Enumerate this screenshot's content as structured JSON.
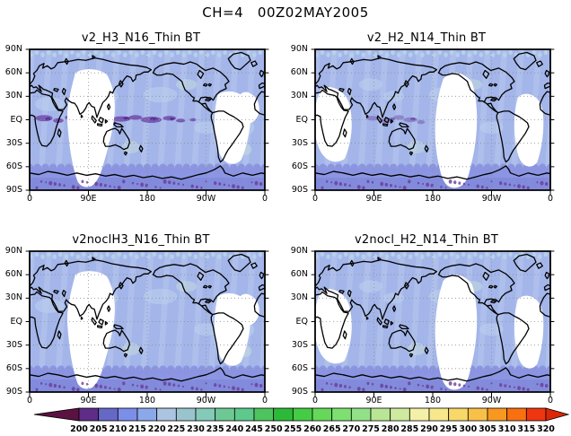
{
  "main": {
    "title": "CH=4   00Z02MAY2005"
  },
  "panels": [
    {
      "title": "v2_H3_N16_Thin BT",
      "variant": "A",
      "clouds": true
    },
    {
      "title": "v2_H2_N14_Thin BT",
      "variant": "B",
      "clouds": true
    },
    {
      "title": "v2noclH3_N16_Thin BT",
      "variant": "A",
      "clouds": false
    },
    {
      "title": "v2nocl_H2_N14_Thin BT",
      "variant": "B",
      "clouds": false
    }
  ],
  "map_axes": {
    "lat_labels": [
      "90N",
      "60N",
      "30N",
      "EQ",
      "30S",
      "60S",
      "90S"
    ],
    "lon_labels": [
      "0",
      "90E",
      "180",
      "90W",
      "0"
    ]
  },
  "colorbar": {
    "labels": [
      "200",
      "205",
      "210",
      "215",
      "220",
      "225",
      "230",
      "235",
      "240",
      "245",
      "250",
      "255",
      "260",
      "265",
      "270",
      "275",
      "280",
      "285",
      "290",
      "295",
      "300",
      "305",
      "310",
      "315",
      "320"
    ],
    "segment_colors": [
      "#5f2c87",
      "#6668c6",
      "#7b8ee9",
      "#8ba9ea",
      "#abc4e1",
      "#9ac4cd",
      "#85c9b9",
      "#6ec895",
      "#5dc98b",
      "#4dc45d",
      "#2db938",
      "#45cc45",
      "#65d859",
      "#7de071",
      "#92e189",
      "#b9e695",
      "#cdea9e",
      "#f4f0a8",
      "#f8e88c",
      "#f8d868",
      "#f8c048",
      "#f89820",
      "#f87010",
      "#ee3611"
    ],
    "left_arrow_color": "#5c1240",
    "right_arrow_color": "#dd2605"
  },
  "map_colors": {
    "data_base": "#a3b5e9",
    "data_pale": "#bdd2ee",
    "data_cyan": "#b7d3ea",
    "green_tint": "#cfe8d8",
    "stripe": "#c8d6f4",
    "swath_gap": "#ffffff",
    "cloud_purple": "#6d44a8",
    "cloud_dark": "#5a2f96",
    "antarctic_band": "#8a93e2",
    "antarctic_scallop": "#7d84d8",
    "polar_dots": "#6a3a9a",
    "coastline": "#000000",
    "grid": "#909090"
  },
  "chart_data": {
    "type": "heatmap",
    "title": "CH=4  00Z02MAY2005",
    "panels": [
      "v2_H3_N16_Thin BT",
      "v2_H2_N14_Thin BT",
      "v2noclH3_N16_Thin BT",
      "v2nocl_H2_N14_Thin BT"
    ],
    "panel_grid": "2x2 world maps, cylindrical lat-lon projection, lon 0-360E, lat 90S-90N",
    "x_ticks": [
      "0",
      "90E",
      "180",
      "90W",
      "0"
    ],
    "y_ticks": [
      "90N",
      "60N",
      "30N",
      "EQ",
      "30S",
      "60S",
      "90S"
    ],
    "colorbar_ticks": [
      200,
      205,
      210,
      215,
      220,
      225,
      230,
      235,
      240,
      245,
      250,
      255,
      260,
      265,
      270,
      275,
      280,
      285,
      290,
      295,
      300,
      305,
      310,
      315,
      320
    ],
    "colorbar_range": [
      200,
      320
    ],
    "colorbar_step": 5,
    "legend_position": "bottom",
    "grid": "dotted",
    "value_summary": "Satellite swath brightness temperatures; shown swaths mostly 210-235 (blue shades), ~200-215 (purple) along tropical cloud bands in top panels and near Antarctica; white regions are data gaps between orbits. Left column (N16) and right column (N14) have complementary swath gap patterns; bottom 'nocl' panels lack the tropical purple cloud signal."
  }
}
